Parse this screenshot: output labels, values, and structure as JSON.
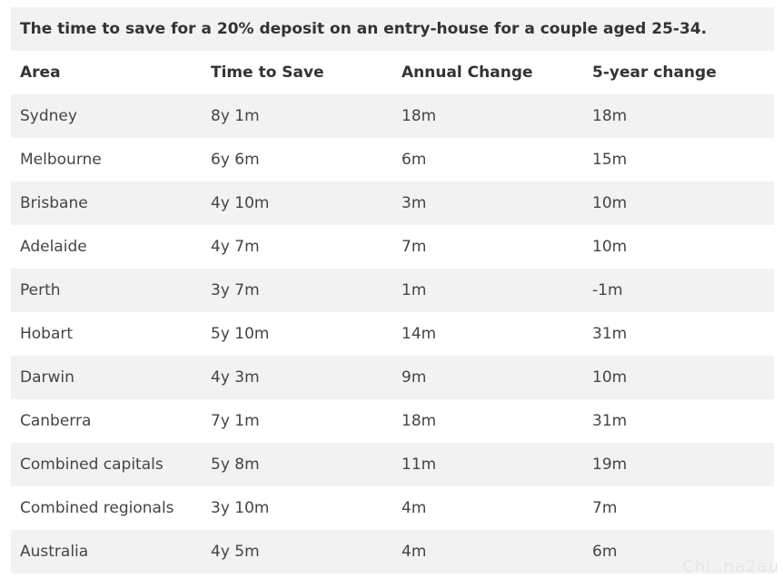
{
  "caption": "The time to save for a 20% deposit on an entry-house for a couple aged 25-34.",
  "headers": [
    "Area",
    "Time to Save",
    "Annual Change",
    "5-year change"
  ],
  "rows": [
    [
      "Sydney",
      "8y 1m",
      "18m",
      "18m"
    ],
    [
      "Melbourne",
      "6y 6m",
      "6m",
      "15m"
    ],
    [
      "Brisbane",
      "4y 10m",
      "3m",
      "10m"
    ],
    [
      "Adelaide",
      "4y 7m",
      "7m",
      "10m"
    ],
    [
      "Perth",
      "3y 7m",
      "1m",
      "-1m"
    ],
    [
      "Hobart",
      "5y 10m",
      "14m",
      "31m"
    ],
    [
      "Darwin",
      "4y 3m",
      "9m",
      "10m"
    ],
    [
      "Canberra",
      "7y 1m",
      "18m",
      "31m"
    ],
    [
      "Combined capitals",
      "5y 8m",
      "11m",
      "19m"
    ],
    [
      "Combined regionals",
      "3y 10m",
      "4m",
      "7m"
    ],
    [
      "Australia",
      "4y 5m",
      "4m",
      "6m"
    ]
  ],
  "watermark": "Chi..na2au",
  "colors": {
    "stripe": "#f2f2f2",
    "text": "#333333",
    "background": "#ffffff"
  }
}
